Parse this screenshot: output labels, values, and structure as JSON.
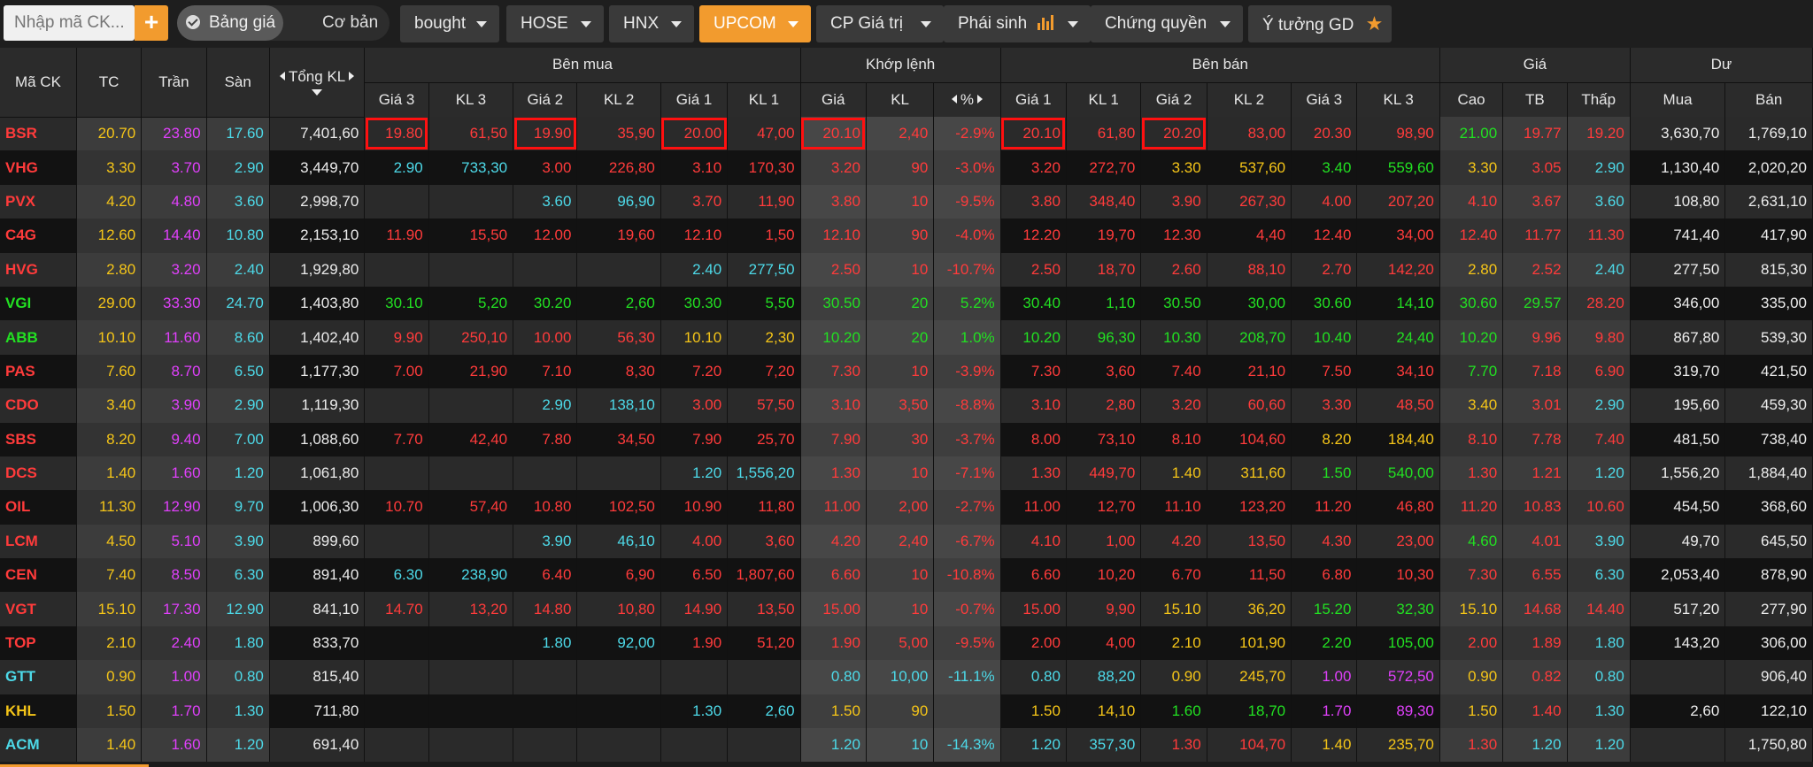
{
  "topbar": {
    "search_placeholder": "Nhập mã CK...",
    "add_label": "+",
    "toggle_on": "Bảng giá",
    "toggle_off": "Cơ bản",
    "tabs": [
      {
        "label": "bought"
      },
      {
        "label": "HOSE"
      },
      {
        "label": "HNX"
      },
      {
        "label": "UPCOM",
        "active": true
      },
      {
        "label": "CP Giá trị"
      },
      {
        "label": "Phái sinh"
      },
      {
        "label": "Chứng quyền"
      },
      {
        "label": "Ý tưởng GD"
      }
    ]
  },
  "headers": {
    "sym": "Mã CK",
    "tc": "TC",
    "tran": "Trần",
    "san": "Sàn",
    "total": "Tổng KL",
    "ben_mua": "Bên mua",
    "khop": "Khớp lệnh",
    "ben_ban": "Bên bán",
    "gia": "Giá",
    "du": "Dư",
    "gia3": "Giá 3",
    "kl3": "KL 3",
    "gia2": "Giá 2",
    "kl2": "KL 2",
    "gia1": "Giá 1",
    "kl1": "KL 1",
    "k_gia": "Giá",
    "k_kl": "KL",
    "k_pct": "%",
    "cao": "Cao",
    "tb": "TB",
    "thap": "Thấp",
    "mua": "Mua",
    "ban": "Bán"
  },
  "colors": {
    "reference": "#f5c518",
    "ceiling": "#e040fb",
    "floor": "#4dd9e8",
    "up": "#22e022",
    "down": "#ff3b3b",
    "accent": "#f29b2e",
    "highlight_box": "#ff1010"
  },
  "rows": [
    {
      "sym": "BSR",
      "tc": "20.70",
      "tran": "23.80",
      "san": "17.60",
      "total": "7,401,60",
      "b3": "19.80",
      "bk3": "61,50",
      "b2": "19.90",
      "bk2": "35,90",
      "b1": "20.00",
      "bk1": "47,00",
      "kg": "20.10",
      "kk": "2,40",
      "kp": "-2.9%",
      "s1": "20.10",
      "sk1": "61,80",
      "s2": "20.20",
      "sk2": "83,00",
      "s3": "20.30",
      "sk3": "98,90",
      "cao": "21.00",
      "tb": "19.77",
      "thap": "19.20",
      "mua": "3,630,70",
      "ban": "1,769,10"
    },
    {
      "sym": "VHG",
      "tc": "3.30",
      "tran": "3.70",
      "san": "2.90",
      "total": "3,449,70",
      "b3": "2.90",
      "bk3": "733,30",
      "b2": "3.00",
      "bk2": "226,80",
      "b1": "3.10",
      "bk1": "170,30",
      "kg": "3.20",
      "kk": "90",
      "kp": "-3.0%",
      "s1": "3.20",
      "sk1": "272,70",
      "s2": "3.30",
      "sk2": "537,60",
      "s3": "3.40",
      "sk3": "559,60",
      "cao": "3.30",
      "tb": "3.05",
      "thap": "2.90",
      "mua": "1,130,40",
      "ban": "2,020,20"
    },
    {
      "sym": "PVX",
      "tc": "4.20",
      "tran": "4.80",
      "san": "3.60",
      "total": "2,998,70",
      "b3": "",
      "bk3": "",
      "b2": "3.60",
      "bk2": "96,90",
      "b1": "3.70",
      "bk1": "11,90",
      "kg": "3.80",
      "kk": "10",
      "kp": "-9.5%",
      "s1": "3.80",
      "sk1": "348,40",
      "s2": "3.90",
      "sk2": "267,30",
      "s3": "4.00",
      "sk3": "207,20",
      "cao": "4.10",
      "tb": "3.67",
      "thap": "3.60",
      "mua": "108,80",
      "ban": "2,631,10"
    },
    {
      "sym": "C4G",
      "tc": "12.60",
      "tran": "14.40",
      "san": "10.80",
      "total": "2,153,10",
      "b3": "11.90",
      "bk3": "15,50",
      "b2": "12.00",
      "bk2": "19,60",
      "b1": "12.10",
      "bk1": "1,50",
      "kg": "12.10",
      "kk": "90",
      "kp": "-4.0%",
      "s1": "12.20",
      "sk1": "19,70",
      "s2": "12.30",
      "sk2": "4,40",
      "s3": "12.40",
      "sk3": "34,00",
      "cao": "12.40",
      "tb": "11.77",
      "thap": "11.30",
      "mua": "741,40",
      "ban": "417,90"
    },
    {
      "sym": "HVG",
      "tc": "2.80",
      "tran": "3.20",
      "san": "2.40",
      "total": "1,929,80",
      "b3": "",
      "bk3": "",
      "b2": "",
      "bk2": "",
      "b1": "2.40",
      "bk1": "277,50",
      "kg": "2.50",
      "kk": "10",
      "kp": "-10.7%",
      "s1": "2.50",
      "sk1": "18,70",
      "s2": "2.60",
      "sk2": "88,10",
      "s3": "2.70",
      "sk3": "142,20",
      "cao": "2.80",
      "tb": "2.52",
      "thap": "2.40",
      "mua": "277,50",
      "ban": "815,30"
    },
    {
      "sym": "VGI",
      "tc": "29.00",
      "tran": "33.30",
      "san": "24.70",
      "total": "1,403,80",
      "b3": "30.10",
      "bk3": "5,20",
      "b2": "30.20",
      "bk2": "2,60",
      "b1": "30.30",
      "bk1": "5,50",
      "kg": "30.50",
      "kk": "20",
      "kp": "5.2%",
      "s1": "30.40",
      "sk1": "1,10",
      "s2": "30.50",
      "sk2": "30,00",
      "s3": "30.60",
      "sk3": "14,10",
      "cao": "30.60",
      "tb": "29.57",
      "thap": "28.20",
      "mua": "346,00",
      "ban": "335,00"
    },
    {
      "sym": "ABB",
      "tc": "10.10",
      "tran": "11.60",
      "san": "8.60",
      "total": "1,402,40",
      "b3": "9.90",
      "bk3": "250,10",
      "b2": "10.00",
      "bk2": "56,30",
      "b1": "10.10",
      "bk1": "2,30",
      "kg": "10.20",
      "kk": "20",
      "kp": "1.0%",
      "s1": "10.20",
      "sk1": "96,30",
      "s2": "10.30",
      "sk2": "208,70",
      "s3": "10.40",
      "sk3": "24,40",
      "cao": "10.20",
      "tb": "9.96",
      "thap": "9.80",
      "mua": "867,80",
      "ban": "539,30"
    },
    {
      "sym": "PAS",
      "tc": "7.60",
      "tran": "8.70",
      "san": "6.50",
      "total": "1,177,30",
      "b3": "7.00",
      "bk3": "21,90",
      "b2": "7.10",
      "bk2": "8,30",
      "b1": "7.20",
      "bk1": "7,20",
      "kg": "7.30",
      "kk": "10",
      "kp": "-3.9%",
      "s1": "7.30",
      "sk1": "3,60",
      "s2": "7.40",
      "sk2": "21,10",
      "s3": "7.50",
      "sk3": "34,10",
      "cao": "7.70",
      "tb": "7.18",
      "thap": "6.90",
      "mua": "319,70",
      "ban": "421,50"
    },
    {
      "sym": "CDO",
      "tc": "3.40",
      "tran": "3.90",
      "san": "2.90",
      "total": "1,119,30",
      "b3": "",
      "bk3": "",
      "b2": "2.90",
      "bk2": "138,10",
      "b1": "3.00",
      "bk1": "57,50",
      "kg": "3.10",
      "kk": "3,50",
      "kp": "-8.8%",
      "s1": "3.10",
      "sk1": "2,80",
      "s2": "3.20",
      "sk2": "60,60",
      "s3": "3.30",
      "sk3": "48,50",
      "cao": "3.40",
      "tb": "3.01",
      "thap": "2.90",
      "mua": "195,60",
      "ban": "459,30"
    },
    {
      "sym": "SBS",
      "tc": "8.20",
      "tran": "9.40",
      "san": "7.00",
      "total": "1,088,60",
      "b3": "7.70",
      "bk3": "42,40",
      "b2": "7.80",
      "bk2": "34,50",
      "b1": "7.90",
      "bk1": "25,70",
      "kg": "7.90",
      "kk": "30",
      "kp": "-3.7%",
      "s1": "8.00",
      "sk1": "73,10",
      "s2": "8.10",
      "sk2": "104,60",
      "s3": "8.20",
      "sk3": "184,40",
      "cao": "8.10",
      "tb": "7.78",
      "thap": "7.40",
      "mua": "481,50",
      "ban": "738,40"
    },
    {
      "sym": "DCS",
      "tc": "1.40",
      "tran": "1.60",
      "san": "1.20",
      "total": "1,061,80",
      "b3": "",
      "bk3": "",
      "b2": "",
      "bk2": "",
      "b1": "1.20",
      "bk1": "1,556,20",
      "kg": "1.30",
      "kk": "10",
      "kp": "-7.1%",
      "s1": "1.30",
      "sk1": "449,70",
      "s2": "1.40",
      "sk2": "311,60",
      "s3": "1.50",
      "sk3": "540,00",
      "cao": "1.30",
      "tb": "1.21",
      "thap": "1.20",
      "mua": "1,556,20",
      "ban": "1,884,40"
    },
    {
      "sym": "OIL",
      "tc": "11.30",
      "tran": "12.90",
      "san": "9.70",
      "total": "1,006,30",
      "b3": "10.70",
      "bk3": "57,40",
      "b2": "10.80",
      "bk2": "102,50",
      "b1": "10.90",
      "bk1": "11,80",
      "kg": "11.00",
      "kk": "2,00",
      "kp": "-2.7%",
      "s1": "11.00",
      "sk1": "12,70",
      "s2": "11.10",
      "sk2": "123,20",
      "s3": "11.20",
      "sk3": "46,80",
      "cao": "11.20",
      "tb": "10.83",
      "thap": "10.60",
      "mua": "454,50",
      "ban": "368,60"
    },
    {
      "sym": "LCM",
      "tc": "4.50",
      "tran": "5.10",
      "san": "3.90",
      "total": "899,60",
      "b3": "",
      "bk3": "",
      "b2": "3.90",
      "bk2": "46,10",
      "b1": "4.00",
      "bk1": "3,60",
      "kg": "4.20",
      "kk": "2,40",
      "kp": "-6.7%",
      "s1": "4.10",
      "sk1": "1,00",
      "s2": "4.20",
      "sk2": "13,50",
      "s3": "4.30",
      "sk3": "23,00",
      "cao": "4.60",
      "tb": "4.01",
      "thap": "3.90",
      "mua": "49,70",
      "ban": "645,50"
    },
    {
      "sym": "CEN",
      "tc": "7.40",
      "tran": "8.50",
      "san": "6.30",
      "total": "891,40",
      "b3": "6.30",
      "bk3": "238,90",
      "b2": "6.40",
      "bk2": "6,90",
      "b1": "6.50",
      "bk1": "1,807,60",
      "kg": "6.60",
      "kk": "10",
      "kp": "-10.8%",
      "s1": "6.60",
      "sk1": "10,20",
      "s2": "6.70",
      "sk2": "11,50",
      "s3": "6.80",
      "sk3": "10,30",
      "cao": "7.30",
      "tb": "6.55",
      "thap": "6.30",
      "mua": "2,053,40",
      "ban": "878,90"
    },
    {
      "sym": "VGT",
      "tc": "15.10",
      "tran": "17.30",
      "san": "12.90",
      "total": "841,10",
      "b3": "14.70",
      "bk3": "13,20",
      "b2": "14.80",
      "bk2": "10,80",
      "b1": "14.90",
      "bk1": "13,50",
      "kg": "15.00",
      "kk": "10",
      "kp": "-0.7%",
      "s1": "15.00",
      "sk1": "9,90",
      "s2": "15.10",
      "sk2": "36,20",
      "s3": "15.20",
      "sk3": "32,30",
      "cao": "15.10",
      "tb": "14.68",
      "thap": "14.40",
      "mua": "517,20",
      "ban": "277,90"
    },
    {
      "sym": "TOP",
      "tc": "2.10",
      "tran": "2.40",
      "san": "1.80",
      "total": "833,70",
      "b3": "",
      "bk3": "",
      "b2": "1.80",
      "bk2": "92,00",
      "b1": "1.90",
      "bk1": "51,20",
      "kg": "1.90",
      "kk": "5,00",
      "kp": "-9.5%",
      "s1": "2.00",
      "sk1": "4,00",
      "s2": "2.10",
      "sk2": "101,90",
      "s3": "2.20",
      "sk3": "105,00",
      "cao": "2.00",
      "tb": "1.89",
      "thap": "1.80",
      "mua": "143,20",
      "ban": "306,00"
    },
    {
      "sym": "GTT",
      "tc": "0.90",
      "tran": "1.00",
      "san": "0.80",
      "total": "815,40",
      "b3": "",
      "bk3": "",
      "b2": "",
      "bk2": "",
      "b1": "",
      "bk1": "",
      "kg": "0.80",
      "kk": "10,00",
      "kp": "-11.1%",
      "s1": "0.80",
      "sk1": "88,20",
      "s2": "0.90",
      "sk2": "245,70",
      "s3": "1.00",
      "sk3": "572,50",
      "cao": "0.90",
      "tb": "0.82",
      "thap": "0.80",
      "mua": "",
      "ban": "906,40"
    },
    {
      "sym": "KHL",
      "tc": "1.50",
      "tran": "1.70",
      "san": "1.30",
      "total": "711,80",
      "b3": "",
      "bk3": "",
      "b2": "",
      "bk2": "",
      "b1": "1.30",
      "bk1": "2,60",
      "kg": "1.50",
      "kk": "90",
      "kp": "",
      "s1": "1.50",
      "sk1": "14,10",
      "s2": "1.60",
      "sk2": "18,70",
      "s3": "1.70",
      "sk3": "89,30",
      "cao": "1.50",
      "tb": "1.40",
      "thap": "1.30",
      "mua": "2,60",
      "ban": "122,10"
    },
    {
      "sym": "ACM",
      "tc": "1.40",
      "tran": "1.60",
      "san": "1.20",
      "total": "691,40",
      "b3": "",
      "bk3": "",
      "b2": "",
      "bk2": "",
      "b1": "",
      "bk1": "",
      "kg": "1.20",
      "kk": "10",
      "kp": "-14.3%",
      "s1": "1.20",
      "sk1": "357,30",
      "s2": "1.30",
      "sk2": "104,70",
      "s3": "1.40",
      "sk3": "235,70",
      "cao": "1.30",
      "tb": "1.20",
      "thap": "1.20",
      "mua": "",
      "ban": "1,750,80"
    }
  ]
}
